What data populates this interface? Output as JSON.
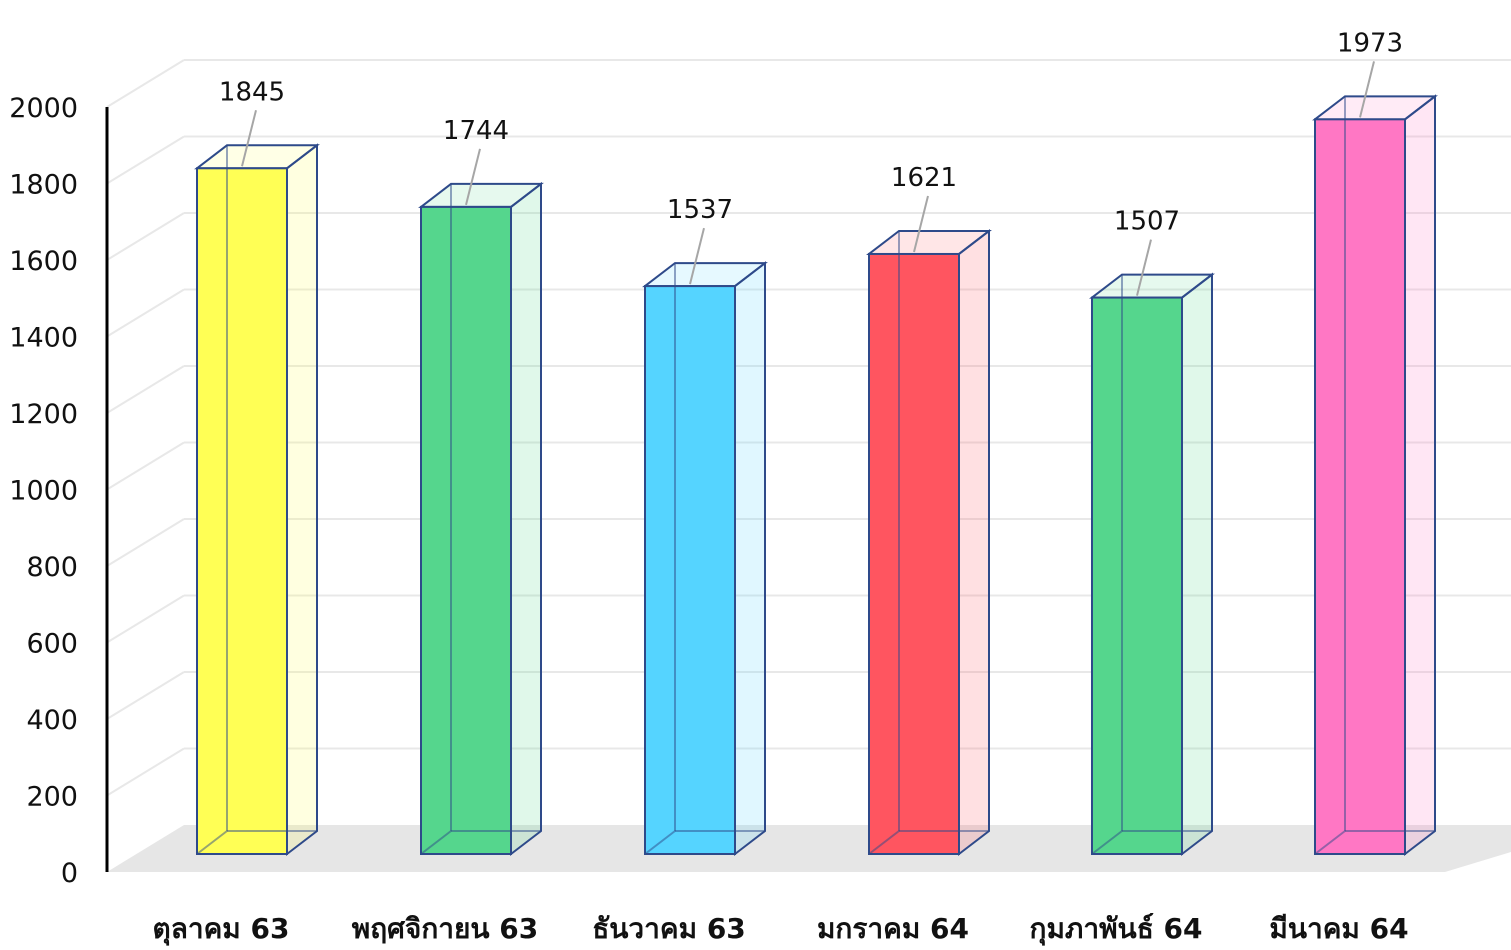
{
  "chart_data": {
    "type": "bar",
    "title": "",
    "xlabel": "",
    "ylabel": "",
    "categories": [
      "ตุลาคม 63",
      "พฤศจิกายน 63",
      "ธันวาคม 63",
      "มกราคม 64",
      "กุมภาพันธ์ 64",
      "มีนาคม 64"
    ],
    "values": [
      1845,
      1744,
      1537,
      1621,
      1507,
      1973
    ],
    "data_labels": [
      "1845",
      "1744",
      "1537",
      "1621",
      "1507",
      "1973"
    ],
    "bar_colors": [
      "#ffff55",
      "#55d68d",
      "#55d4ff",
      "#ff5560",
      "#55d68d",
      "#ff77c4"
    ],
    "ylim": [
      0,
      2000
    ],
    "yticks": [
      "0",
      "200",
      "400",
      "600",
      "800",
      "1000",
      "1200",
      "1400",
      "1600",
      "1800",
      "2000"
    ],
    "grid": true,
    "style": "3d-column",
    "legend": "none"
  }
}
